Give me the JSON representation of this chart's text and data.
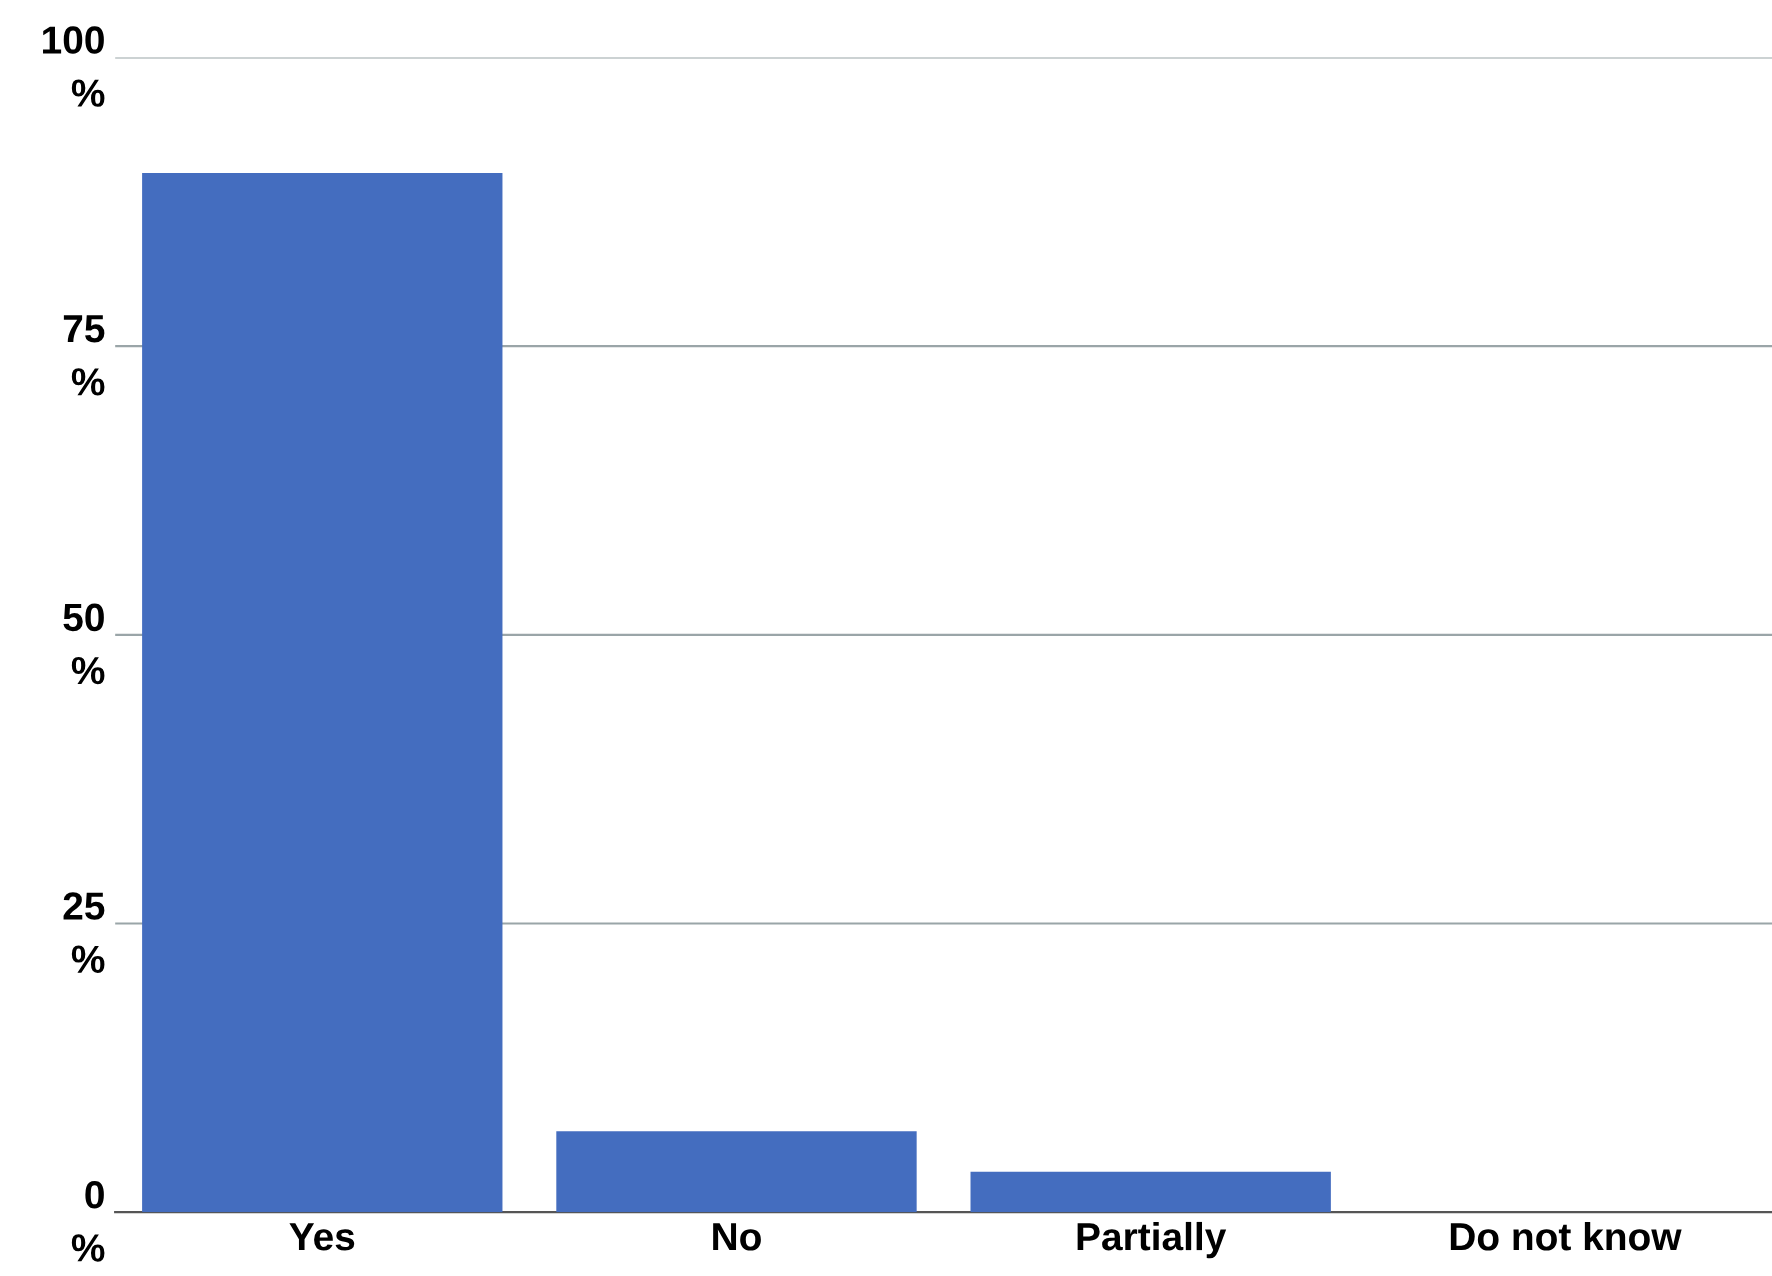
{
  "chart_data": {
    "type": "bar",
    "categories": [
      "Yes",
      "No",
      "Partially",
      "Do not know"
    ],
    "values": [
      90,
      7,
      3.5,
      0
    ],
    "color": "#446dbf",
    "ylim": [
      0,
      100
    ],
    "yticks": [
      {
        "value": 0,
        "label": "0\n%"
      },
      {
        "value": 25,
        "label": "25\n%"
      },
      {
        "value": 50,
        "label": "50\n%"
      },
      {
        "value": 75,
        "label": "75\n%"
      },
      {
        "value": 100,
        "label": "100\n%"
      }
    ],
    "grid": "y"
  }
}
